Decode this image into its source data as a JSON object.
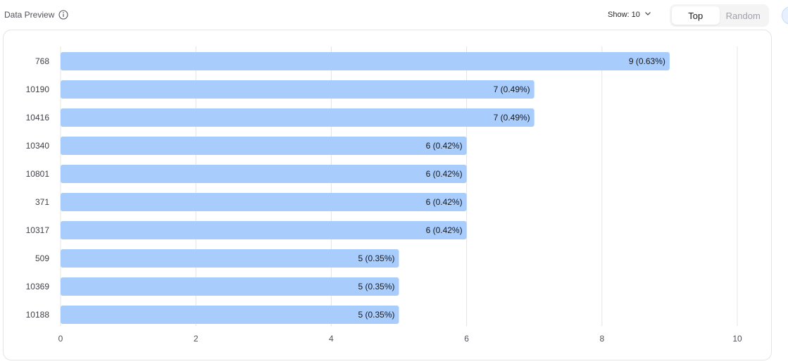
{
  "header": {
    "title": "Data Preview",
    "info_icon": "info-circle-icon"
  },
  "controls": {
    "show_label": "Show: 10",
    "chevron_icon": "chevron-down-icon",
    "tabs": [
      {
        "label": "Top",
        "active": true
      },
      {
        "label": "Random",
        "active": false
      }
    ]
  },
  "colors": {
    "bar": "#a8cdfd",
    "grid": "#e4e4e7",
    "accent": "#18181b"
  },
  "chart_data": {
    "type": "bar",
    "orientation": "horizontal",
    "categories": [
      "768",
      "10190",
      "10416",
      "10340",
      "10801",
      "371",
      "10317",
      "509",
      "10369",
      "10188"
    ],
    "values": [
      9,
      7,
      7,
      6,
      6,
      6,
      6,
      5,
      5,
      5
    ],
    "data_labels": [
      "9 (0.63%)",
      "7 (0.49%)",
      "7 (0.49%)",
      "6 (0.42%)",
      "6 (0.42%)",
      "6 (0.42%)",
      "6 (0.42%)",
      "5 (0.35%)",
      "5 (0.35%)",
      "5 (0.35%)"
    ],
    "xlim": [
      0,
      10
    ],
    "xticks": [
      "0",
      "2",
      "4",
      "6",
      "8",
      "10"
    ],
    "grid": true,
    "title": "",
    "xlabel": "",
    "ylabel": ""
  }
}
